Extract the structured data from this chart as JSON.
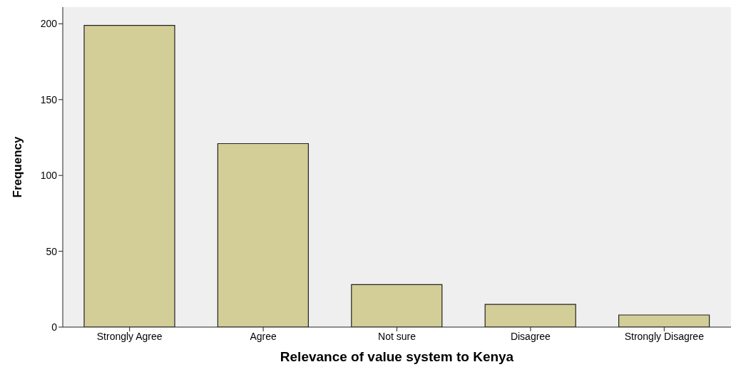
{
  "chart_data": {
    "type": "bar",
    "xlabel": "Relevance of value system to Kenya",
    "ylabel": "Frequency",
    "categories": [
      "Strongly Agree",
      "Agree",
      "Not sure",
      "Disagree",
      "Strongly Disagree"
    ],
    "values": [
      199,
      121,
      28,
      15,
      8
    ],
    "color": "#d3ce97",
    "ylim": [
      0,
      211
    ],
    "yticks": [
      0,
      50,
      100,
      150,
      200
    ],
    "grid": false
  }
}
